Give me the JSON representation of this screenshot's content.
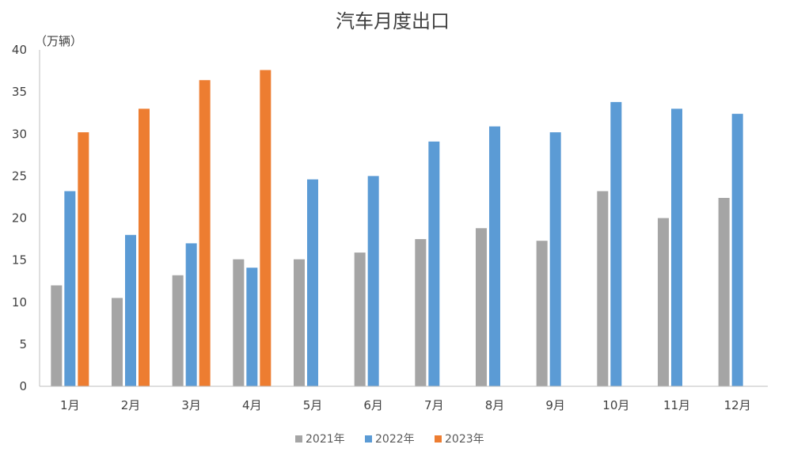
{
  "chart_data": {
    "type": "bar",
    "title": "汽车月度出口",
    "unit_label": "（万辆）",
    "xlabel": "",
    "ylabel": "",
    "ylim": [
      0,
      40
    ],
    "yticks": [
      0,
      5,
      10,
      15,
      20,
      25,
      30,
      35,
      40
    ],
    "categories": [
      "1月",
      "2月",
      "3月",
      "4月",
      "5月",
      "6月",
      "7月",
      "8月",
      "9月",
      "10月",
      "11月",
      "12月"
    ],
    "series": [
      {
        "name": "2021年",
        "color": "#a5a5a5",
        "values": [
          12.0,
          10.5,
          13.2,
          15.1,
          15.1,
          15.9,
          17.5,
          18.8,
          17.3,
          23.2,
          20.0,
          22.4
        ]
      },
      {
        "name": "2022年",
        "color": "#5b9bd5",
        "values": [
          23.2,
          18.0,
          17.0,
          14.1,
          24.6,
          25.0,
          29.1,
          30.9,
          30.2,
          33.8,
          33.0,
          32.4
        ]
      },
      {
        "name": "2023年",
        "color": "#ed7d31",
        "values": [
          30.2,
          33.0,
          36.4,
          37.6,
          null,
          null,
          null,
          null,
          null,
          null,
          null,
          null
        ]
      }
    ],
    "grid": false,
    "legend": "bottom"
  }
}
